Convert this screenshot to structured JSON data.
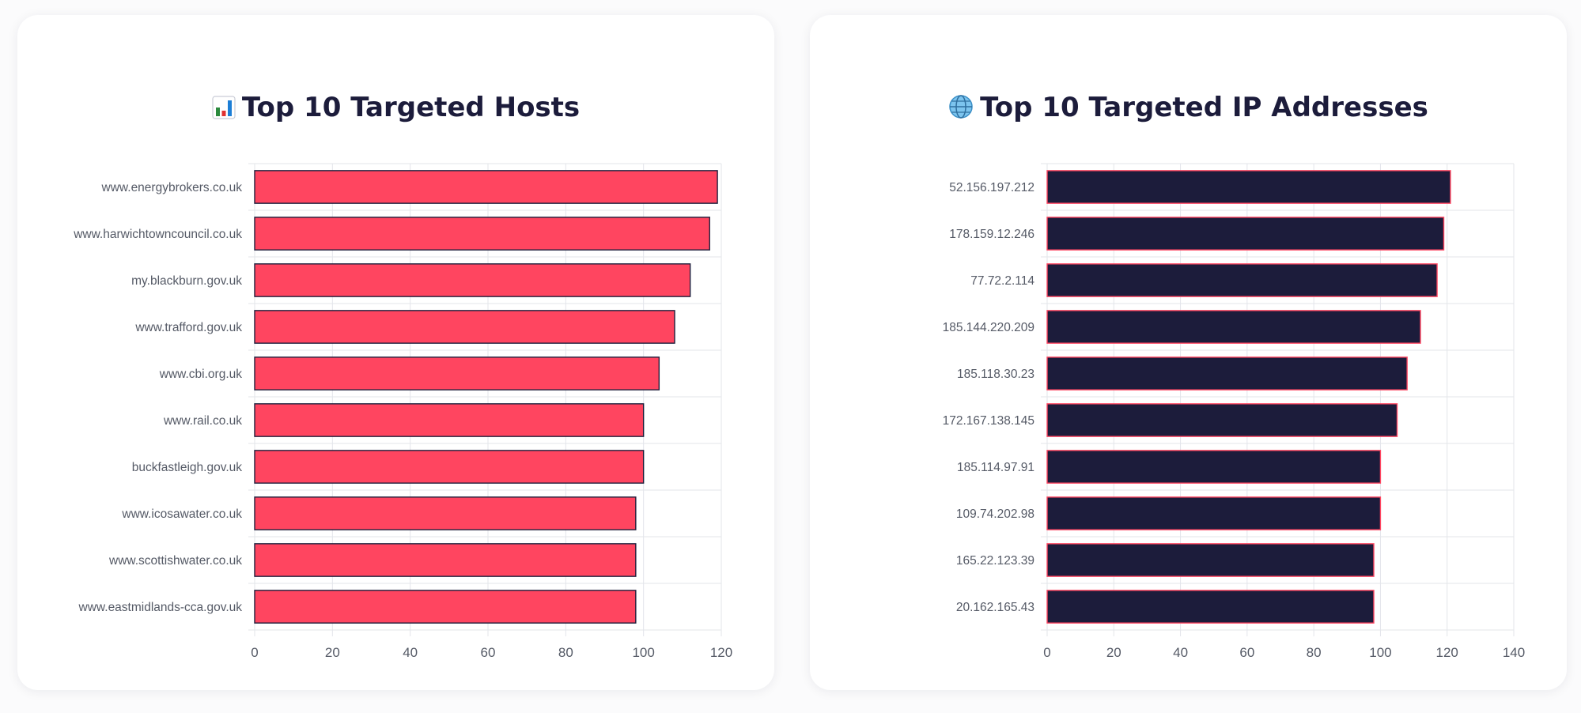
{
  "colors": {
    "hosts_bar_fill": "#ff4560",
    "hosts_bar_stroke": "#1e1e3c",
    "ips_bar_fill": "#1c1c3b",
    "ips_bar_stroke": "#ff4560",
    "grid": "#e3e5ea",
    "title": "#1c1c3b"
  },
  "hosts_card": {
    "title": "Top 10 Targeted Hosts",
    "icon": "bar-chart-icon"
  },
  "ips_card": {
    "title": "Top 10 Targeted IP Addresses",
    "icon": "globe-icon"
  },
  "chart_data": [
    {
      "type": "bar",
      "orientation": "horizontal",
      "title": "Top 10 Targeted Hosts",
      "categories": [
        "www.energybrokers.co.uk",
        "www.harwichtowncouncil.co.uk",
        "my.blackburn.gov.uk",
        "www.trafford.gov.uk",
        "www.cbi.org.uk",
        "www.rail.co.uk",
        "buckfastleigh.gov.uk",
        "www.icosawater.co.uk",
        "www.scottishwater.co.uk",
        "www.eastmidlands-cca.gov.uk"
      ],
      "values": [
        119,
        117,
        112,
        108,
        104,
        100,
        100,
        98,
        98,
        98
      ],
      "xlim": [
        0,
        120
      ],
      "xticks": [
        0,
        20,
        40,
        60,
        80,
        100,
        120
      ],
      "grid": true,
      "legend": "none"
    },
    {
      "type": "bar",
      "orientation": "horizontal",
      "title": "Top 10 Targeted IP Addresses",
      "categories": [
        "52.156.197.212",
        "178.159.12.246",
        "77.72.2.114",
        "185.144.220.209",
        "185.118.30.23",
        "172.167.138.145",
        "185.114.97.91",
        "109.74.202.98",
        "165.22.123.39",
        "20.162.165.43"
      ],
      "values": [
        121,
        119,
        117,
        112,
        108,
        105,
        100,
        100,
        98,
        98
      ],
      "xlim": [
        0,
        140
      ],
      "xticks": [
        0,
        20,
        40,
        60,
        80,
        100,
        120,
        140
      ],
      "grid": true,
      "legend": "none"
    }
  ]
}
